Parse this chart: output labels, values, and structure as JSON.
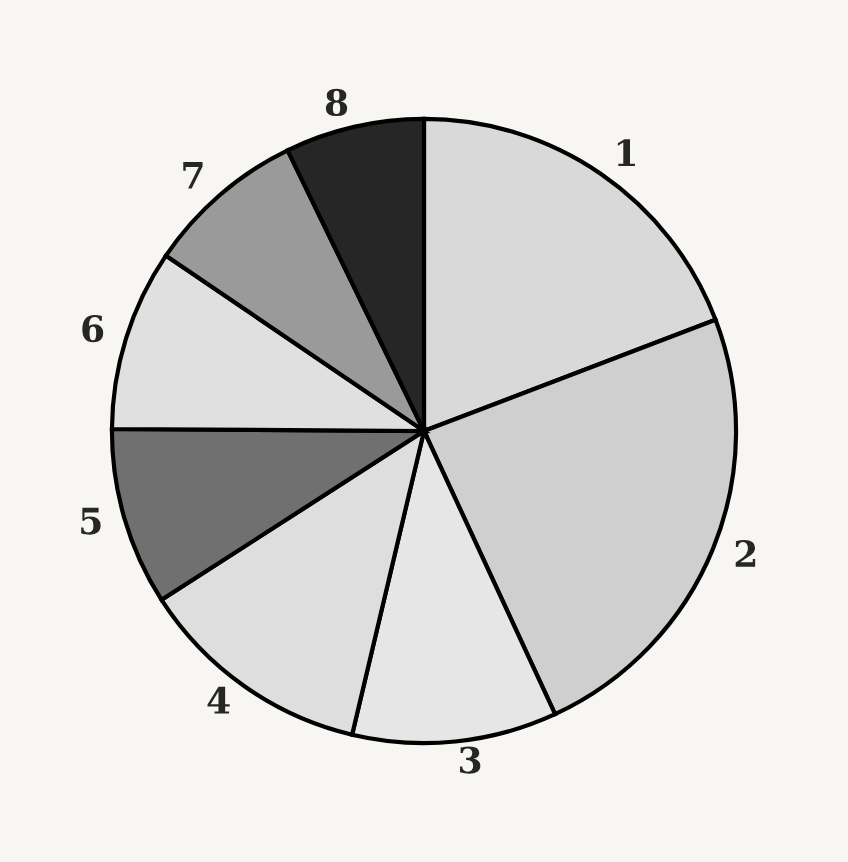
{
  "chart_data": {
    "type": "pie",
    "categories": [
      "1",
      "2",
      "3",
      "4",
      "5",
      "6",
      "7",
      "8"
    ],
    "values": [
      19.2,
      23.9,
      10.6,
      12.2,
      9.2,
      9.4,
      8.3,
      7.2
    ],
    "colors": [
      "#d9d9d9",
      "#cfcfcf",
      "#e6e6e6",
      "#dedede",
      "#707070",
      "#e0e0e0",
      "#9a9a9a",
      "#262626"
    ]
  }
}
